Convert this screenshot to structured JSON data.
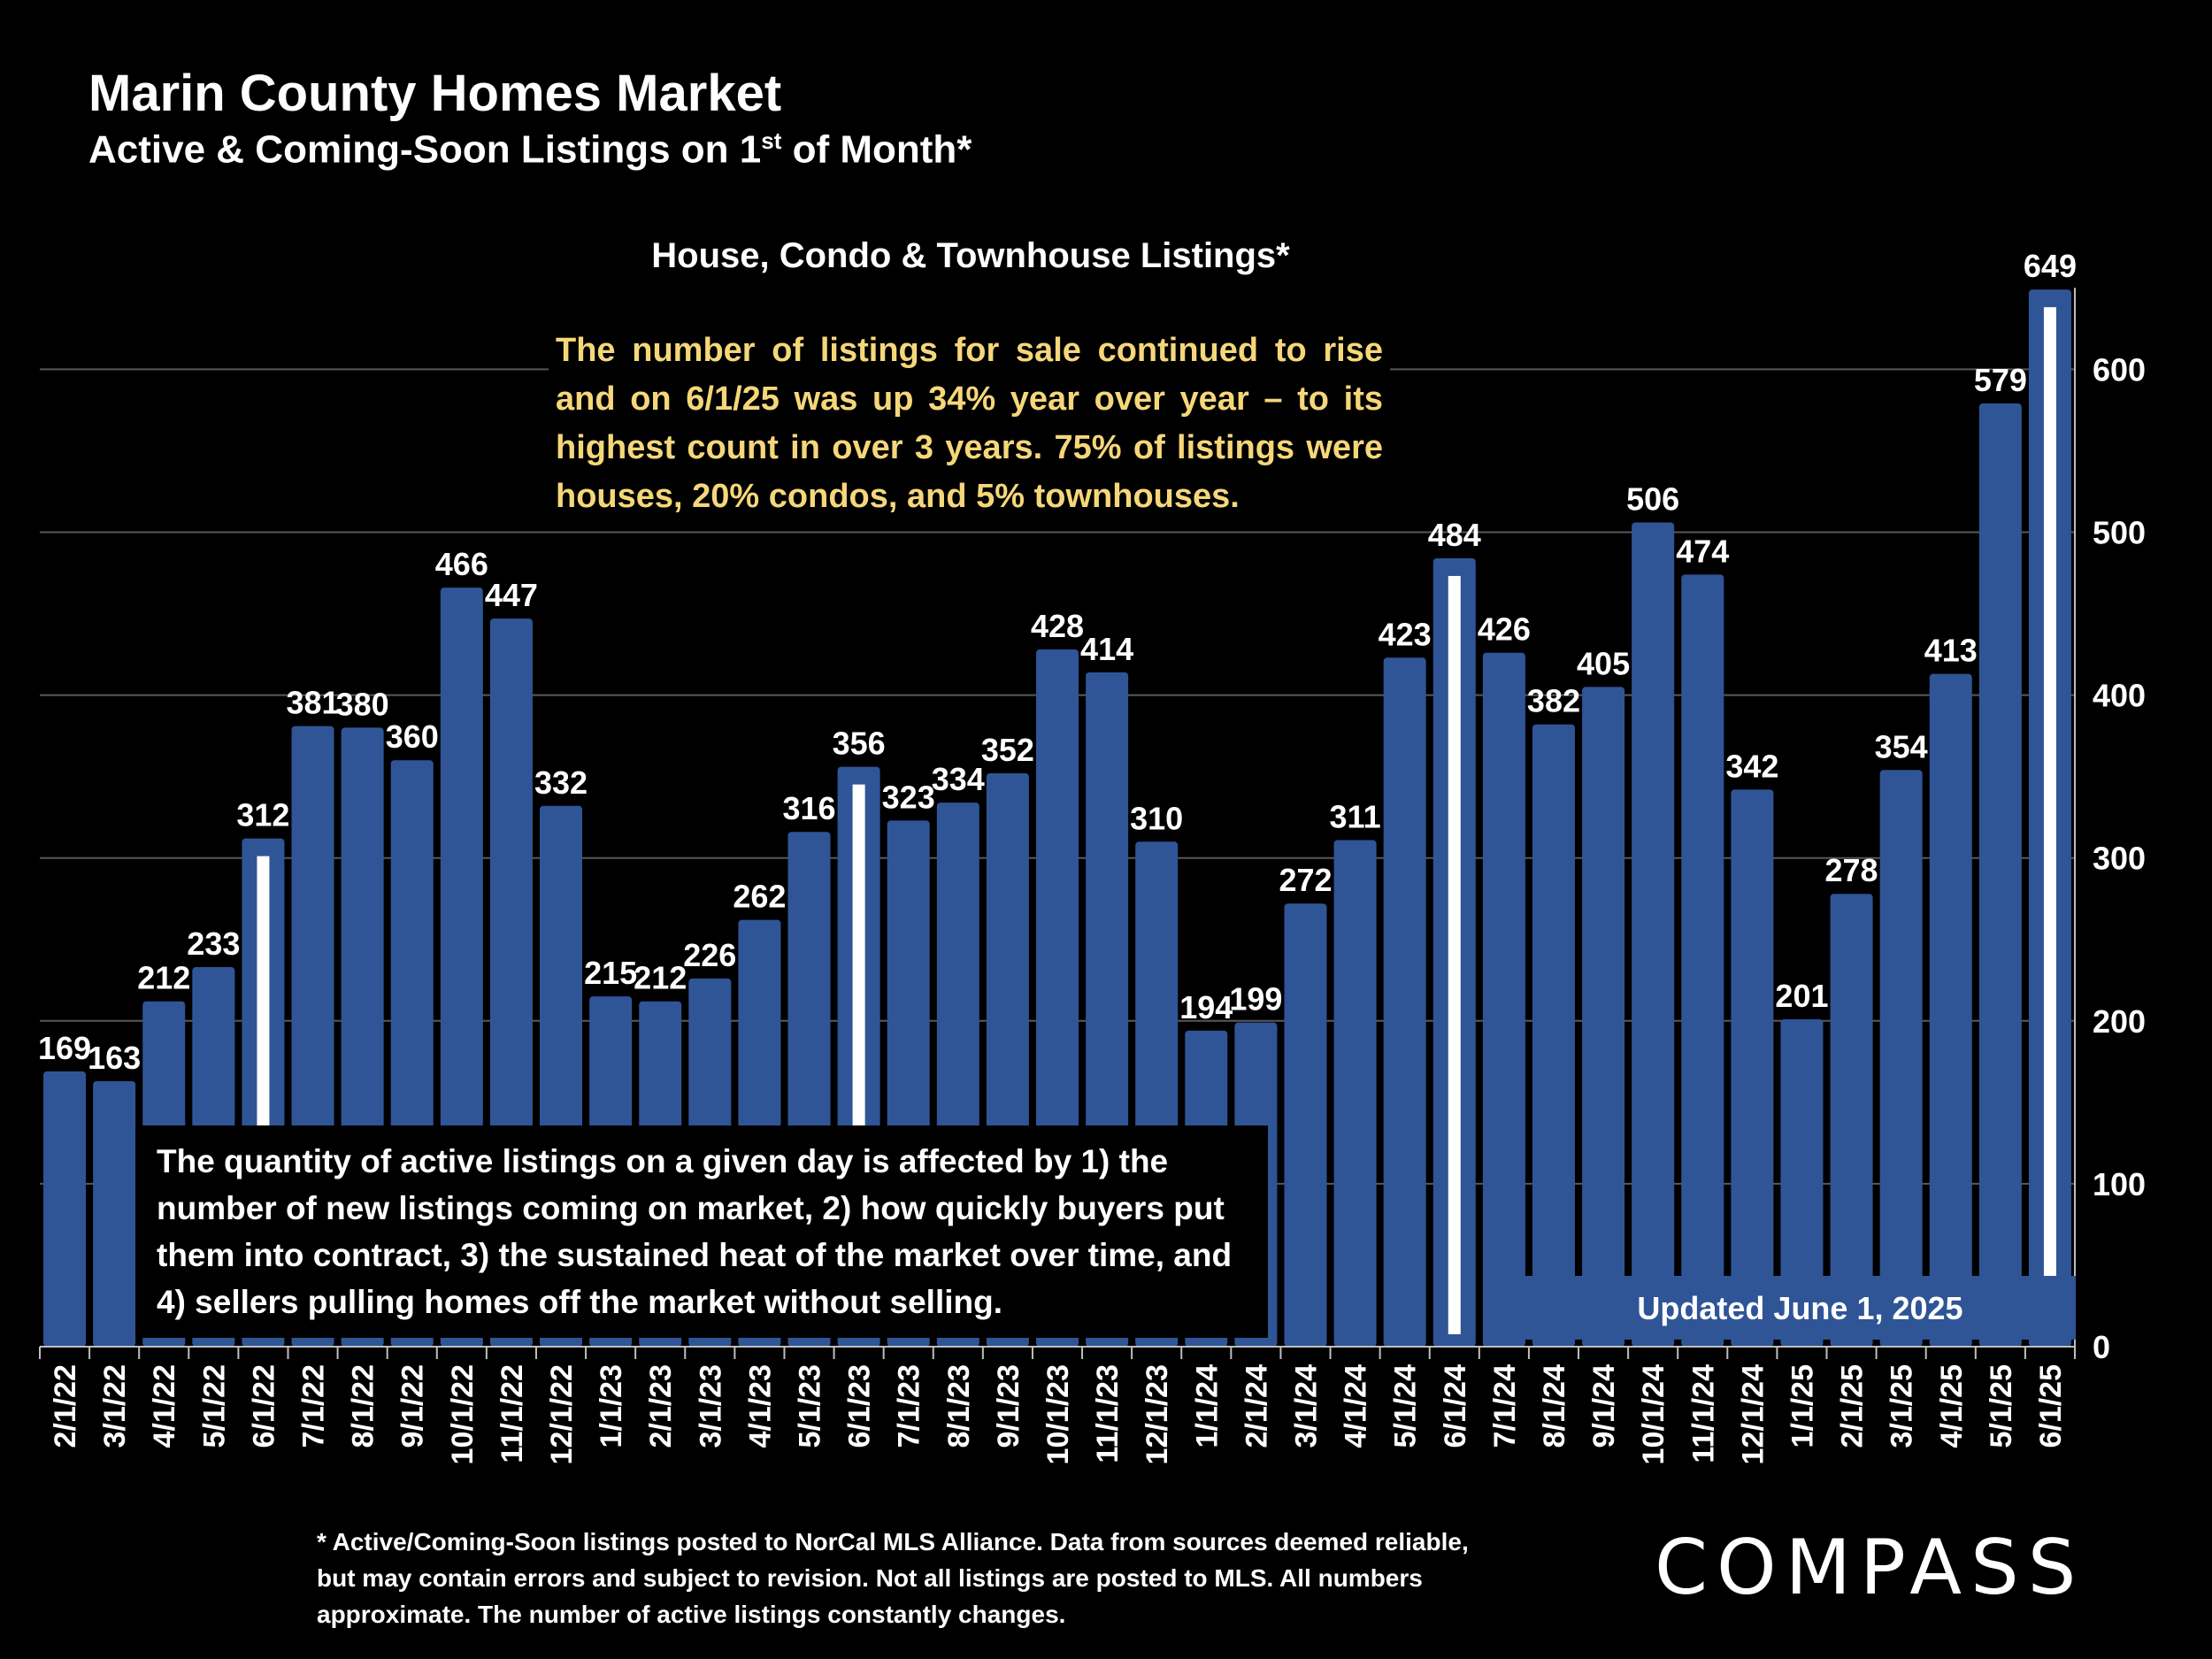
{
  "header": {
    "title": "Marin County Homes Market",
    "subtitle_pre": "Active & Coming-Soon Listings on 1",
    "subtitle_sup": "st",
    "subtitle_post": " of Month*"
  },
  "colors": {
    "bar": "#2f5597",
    "highlight": "#ffffff",
    "note_text": "#f5d77a",
    "grid": "#595959"
  },
  "callouts": {
    "top_heading": "House, Condo & Townhouse Listings*",
    "yellow_note": "The number of listings for sale continued to rise and on 6/1/25 was up 34% year over year – to its highest count in over 3 years. 75% of listings were houses, 20% condos, and 5% townhouses.",
    "box_note": "The quantity of active listings on a given day is affected by 1) the number of new listings coming on market, 2) how quickly buyers put them into contract, 3) the sustained heat of the market over time, and 4) sellers pulling homes off the market without selling.",
    "updated": "Updated June 1, 2025"
  },
  "footnote": "* Active/Coming-Soon listings posted to NorCal MLS Alliance.  Data from sources deemed reliable, but may contain errors and subject to revision.  Not all listings are posted to MLS. All numbers approximate. The number of active listings constantly changes.",
  "logo_text": "COMPASS",
  "chart_data": {
    "type": "bar",
    "title": "House, Condo & Townhouse Listings*",
    "categories": [
      "2/1/22",
      "3/1/22",
      "4/1/22",
      "5/1/22",
      "6/1/22",
      "7/1/22",
      "8/1/22",
      "9/1/22",
      "10/1/22",
      "11/1/22",
      "12/1/22",
      "1/1/23",
      "2/1/23",
      "3/1/23",
      "4/1/23",
      "5/1/23",
      "6/1/23",
      "7/1/23",
      "8/1/23",
      "9/1/23",
      "10/1/23",
      "11/1/23",
      "12/1/23",
      "1/1/24",
      "2/1/24",
      "3/1/24",
      "4/1/24",
      "5/1/24",
      "6/1/24",
      "7/1/24",
      "8/1/24",
      "9/1/24",
      "10/1/24",
      "11/1/24",
      "12/1/24",
      "1/1/25",
      "2/1/25",
      "3/1/25",
      "4/1/25",
      "5/1/25",
      "6/1/25"
    ],
    "values": [
      169,
      163,
      212,
      233,
      312,
      381,
      380,
      360,
      466,
      447,
      332,
      215,
      212,
      226,
      262,
      316,
      356,
      323,
      334,
      352,
      428,
      414,
      310,
      194,
      199,
      272,
      311,
      423,
      484,
      426,
      382,
      405,
      506,
      474,
      342,
      201,
      278,
      354,
      413,
      579,
      649
    ],
    "highlighted": [
      "6/1/22",
      "6/1/23",
      "6/1/24",
      "6/1/25"
    ],
    "y_axis": {
      "position": "right",
      "ylim": [
        0,
        650
      ],
      "ticks": [
        0,
        100,
        200,
        300,
        400,
        500,
        600
      ]
    },
    "grid": true
  }
}
